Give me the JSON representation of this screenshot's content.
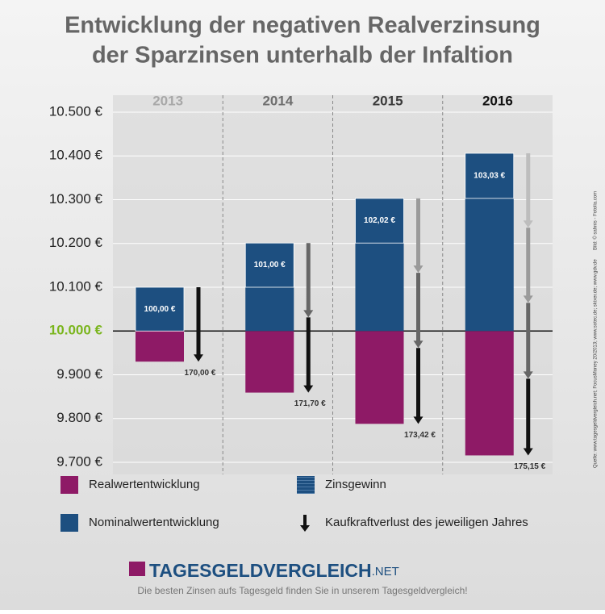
{
  "chart_data": {
    "type": "bar",
    "title": [
      "Entwicklung der negativen Realverzinsung",
      "der Sparzinsen unterhalb der Infaltion"
    ],
    "categories": [
      "2013",
      "2014",
      "2015",
      "2016"
    ],
    "category_colors": [
      "#a8a8a8",
      "#6e6e6e",
      "#3a3a3a",
      "#111111"
    ],
    "base": 10000,
    "base_color": "#7ab51d",
    "series": [
      {
        "name": "Realwertentwicklung",
        "color": "#8e1a66",
        "values": [
          9930,
          9859.3,
          9787.89,
          9715.77
        ]
      },
      {
        "name": "Zinsgewinn",
        "color": "#1d4f80",
        "values": [
          100,
          101,
          102.02,
          103.03
        ],
        "value_labels": [
          "100,00 €",
          "101,00 €",
          "102,02 €",
          "103,03 €"
        ]
      },
      {
        "name": "Nominalwertentwicklung",
        "color": "#1d4f80",
        "values": [
          10100,
          10201,
          10303.01,
          10406.04
        ]
      },
      {
        "name": "Kaufkraftverlust des jeweiligen Jahres",
        "color": "#111111",
        "values": [
          170,
          171.7,
          173.42,
          175.15
        ],
        "value_labels": [
          "170,00 €",
          "171,70 €",
          "173,42 €",
          "175,15 €"
        ]
      }
    ],
    "ylim": [
      9700,
      10500
    ],
    "yticks": [
      {
        "value": 9700,
        "label": "9.700 €"
      },
      {
        "value": 9800,
        "label": "9.800 €"
      },
      {
        "value": 9900,
        "label": "9.900 €"
      },
      {
        "value": 10000,
        "label": "10.000 €"
      },
      {
        "value": 10100,
        "label": "10.100 €"
      },
      {
        "value": 10200,
        "label": "10.200 €"
      },
      {
        "value": 10300,
        "label": "10.300 €"
      },
      {
        "value": 10400,
        "label": "10.400 €"
      },
      {
        "value": 10500,
        "label": "10.500 €"
      }
    ],
    "grid": true,
    "logo": "TAGESGELDVERGLEICH",
    "logo_suffix": ".NET",
    "tagline": "Die besten Zinsen aufs Tagesgeld finden Sie in unserem Tagesgeldvergleich!",
    "source": "Quelle: www.tagesgeldvergleich.net; FocusMoney 20/2013; www.sotec.de; skixer.de; www.gdv.de",
    "credit": "Bild: © sahnis - Fotolia.com"
  }
}
